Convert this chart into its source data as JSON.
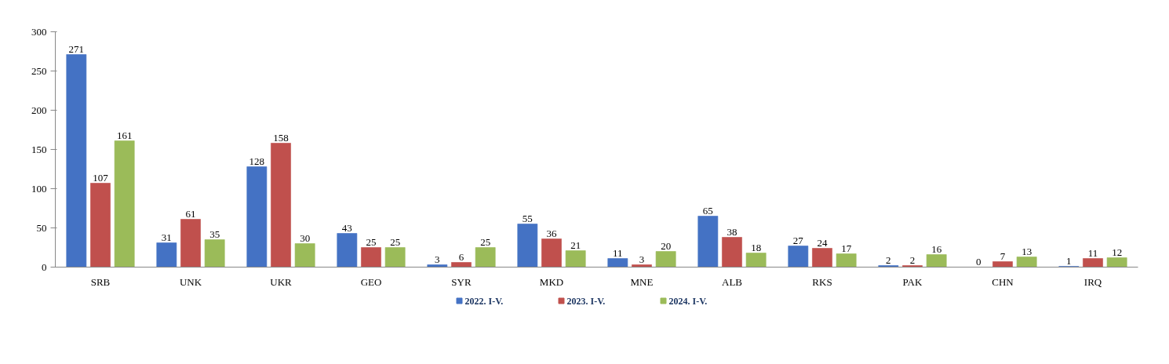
{
  "chart_data": {
    "type": "bar",
    "categories": [
      "SRB",
      "UNK",
      "UKR",
      "GEO",
      "SYR",
      "MKD",
      "MNE",
      "ALB",
      "RKS",
      "PAK",
      "CHN",
      "IRQ"
    ],
    "series": [
      {
        "name": "2022. I-V.",
        "color": "#4472c4",
        "values": [
          271,
          31,
          128,
          43,
          3,
          55,
          11,
          65,
          27,
          2,
          0,
          1
        ]
      },
      {
        "name": "2023. I-V.",
        "color": "#c0504d",
        "values": [
          107,
          61,
          158,
          25,
          6,
          36,
          3,
          38,
          24,
          2,
          7,
          11
        ]
      },
      {
        "name": "2024. I-V.",
        "color": "#9bbb59",
        "values": [
          161,
          35,
          30,
          25,
          25,
          21,
          20,
          18,
          17,
          16,
          13,
          12
        ]
      }
    ],
    "ylim": [
      0,
      300
    ],
    "yticks": [
      0,
      50,
      100,
      150,
      200,
      250,
      300
    ],
    "grid": false,
    "legend": "bottom",
    "data_labels": true
  }
}
